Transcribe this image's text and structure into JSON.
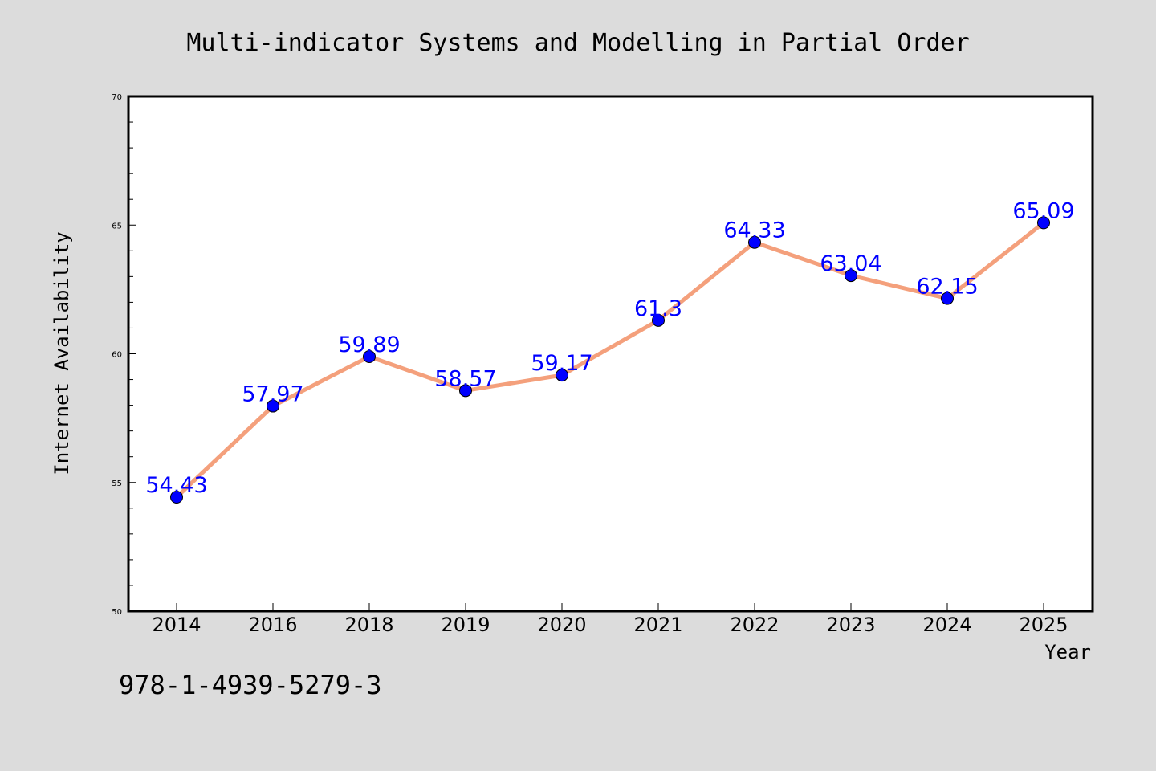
{
  "chart_data": {
    "type": "line",
    "title": "Multi-indicator Systems and Modelling in Partial Order",
    "xlabel": "Year",
    "ylabel": "Internet Availability",
    "categories": [
      "2014",
      "2016",
      "2018",
      "2019",
      "2020",
      "2021",
      "2022",
      "2023",
      "2024",
      "2025"
    ],
    "values": [
      54.43,
      57.97,
      59.89,
      58.57,
      59.17,
      61.3,
      64.33,
      63.04,
      62.15,
      65.09
    ],
    "data_labels": [
      "54.43",
      "57.97",
      "59.89",
      "58.57",
      "59.17",
      "61.3",
      "64.33",
      "63.04",
      "62.15",
      "65.09"
    ],
    "ylim": [
      50,
      70
    ],
    "yticks": [
      "50",
      "55",
      "60",
      "65",
      "70"
    ],
    "grid": false,
    "line_color": "#f4a07c",
    "marker_color": "#0000ff",
    "label_color": "#0000ff",
    "background_color": "#dcdcdc",
    "plot_background": "#ffffff"
  },
  "annotation": {
    "isbn": "978-1-4939-5279-3"
  }
}
